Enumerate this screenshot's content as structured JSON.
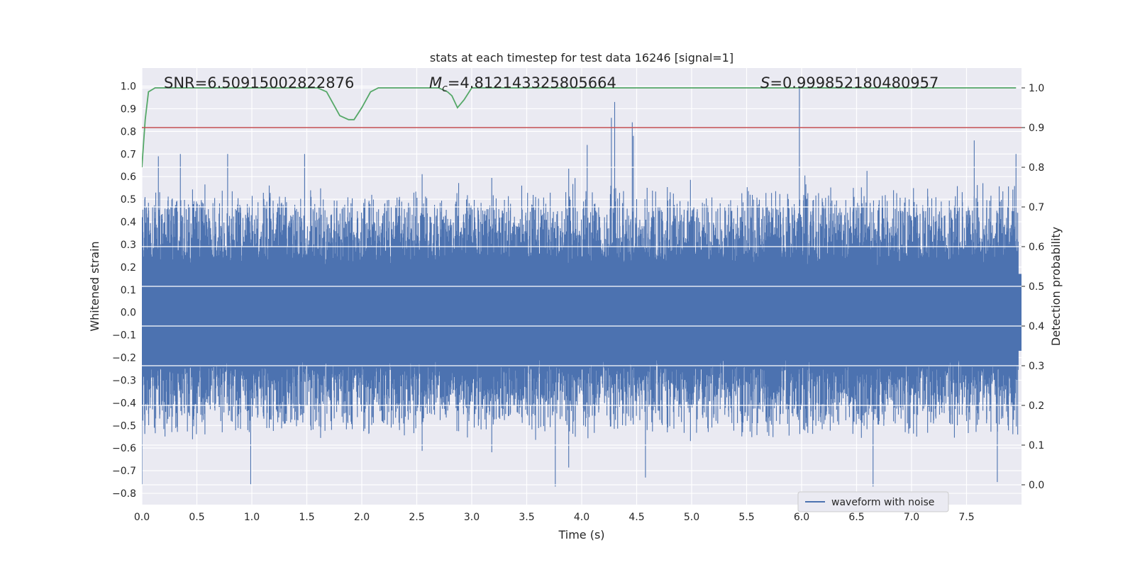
{
  "chart_data": {
    "type": "line",
    "title": "stats at each timestep for test data 16246 [signal=1]",
    "xlabel": "Time (s)",
    "ylabel_left": "Whitened strain",
    "ylabel_right": "Detection probability",
    "xlim": [
      0.0,
      8.0
    ],
    "ylim_left": [
      -0.85,
      1.08
    ],
    "ylim_right": [
      -0.05,
      1.05
    ],
    "x_ticks": [
      "0.0",
      "0.5",
      "1.0",
      "1.5",
      "2.0",
      "2.5",
      "3.0",
      "3.5",
      "4.0",
      "4.5",
      "5.0",
      "5.5",
      "6.0",
      "6.5",
      "7.0",
      "7.5"
    ],
    "y_ticks_left": [
      "1.0",
      "0.9",
      "0.8",
      "0.7",
      "0.6",
      "0.5",
      "0.4",
      "0.3",
      "0.2",
      "0.1",
      "0.0",
      "−0.1",
      "−0.2",
      "−0.3",
      "−0.4",
      "−0.5",
      "−0.6",
      "−0.7",
      "−0.8"
    ],
    "y_ticks_right": [
      "1.0",
      "0.9",
      "0.8",
      "0.7",
      "0.6",
      "0.5",
      "0.4",
      "0.3",
      "0.2",
      "0.1",
      "0.0"
    ],
    "grid": true,
    "legend_position": "lower-right",
    "annotations": {
      "snr": "SNR=6.50915002822876",
      "mc_symbol": "M",
      "mc_subscript": "c",
      "mc_value": "=4.812143325805664",
      "s_symbol": "S",
      "s_value": "=0.999852180480957"
    },
    "series": [
      {
        "name": "waveform with noise",
        "axis": "left",
        "color": "#4c72b0",
        "envelope_note": "dense noise band, visible peaks listed",
        "peaks": [
          {
            "x": 0.15,
            "y": 0.69
          },
          {
            "x": 0.35,
            "y": 0.7
          },
          {
            "x": 0.78,
            "y": 0.7
          },
          {
            "x": 1.48,
            "y": 0.7
          },
          {
            "x": 4.05,
            "y": 0.74
          },
          {
            "x": 4.27,
            "y": 0.86
          },
          {
            "x": 4.3,
            "y": 0.93
          },
          {
            "x": 4.46,
            "y": 0.84
          },
          {
            "x": 4.47,
            "y": 0.78
          },
          {
            "x": 5.98,
            "y": 1.0
          },
          {
            "x": 7.57,
            "y": 0.76
          },
          {
            "x": 7.95,
            "y": 0.7
          }
        ],
        "troughs": [
          {
            "x": 0.0,
            "y": -0.76
          },
          {
            "x": 0.99,
            "y": -0.76
          },
          {
            "x": 3.76,
            "y": -0.77
          },
          {
            "x": 4.58,
            "y": -0.73
          },
          {
            "x": 6.65,
            "y": -0.77
          },
          {
            "x": 7.78,
            "y": -0.75
          }
        ]
      },
      {
        "name": "",
        "axis": "right",
        "color": "#55a868",
        "x": [
          0.0,
          0.03,
          0.06,
          0.12,
          0.2,
          0.5,
          1.0,
          1.5,
          1.6,
          1.68,
          1.8,
          1.88,
          1.93,
          2.0,
          2.08,
          2.15,
          2.3,
          2.5,
          2.6,
          2.7,
          2.78,
          2.82,
          2.87,
          2.93,
          3.0,
          3.1,
          3.5,
          4.0,
          5.0,
          6.0,
          7.0,
          7.95
        ],
        "y": [
          0.8,
          0.92,
          0.99,
          1.0,
          1.0,
          1.0,
          1.0,
          1.0,
          1.0,
          0.99,
          0.93,
          0.92,
          0.92,
          0.95,
          0.99,
          1.0,
          1.0,
          1.0,
          1.0,
          1.0,
          0.99,
          0.98,
          0.95,
          0.97,
          1.0,
          1.0,
          1.0,
          1.0,
          1.0,
          1.0,
          1.0,
          1.0
        ]
      },
      {
        "name": "",
        "axis": "right",
        "color": "#c44e52",
        "type": "hline",
        "y": 0.9
      }
    ]
  }
}
